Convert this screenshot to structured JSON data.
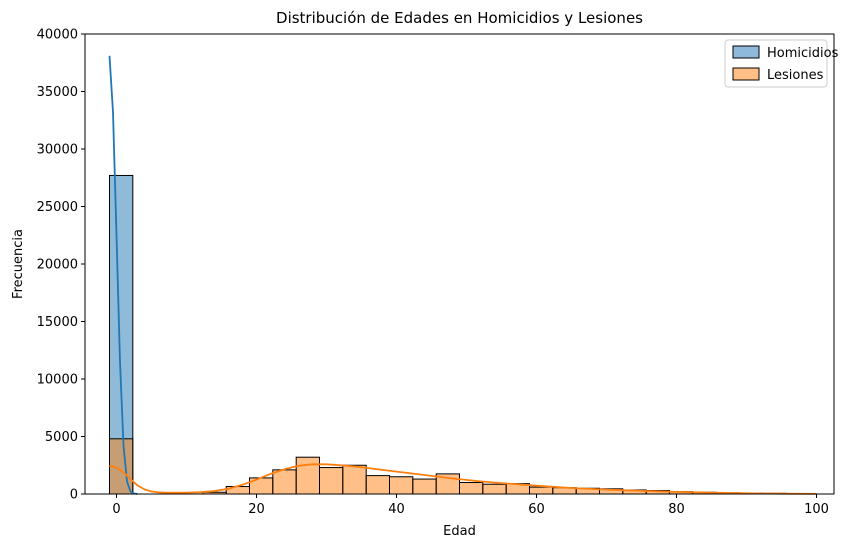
{
  "chart_data": {
    "type": "bar",
    "title": "Distribución de Edades en Homicidios y Lesiones",
    "xlabel": "Edad",
    "ylabel": "Frecuencia",
    "xlim": [
      -4.5,
      102.5
    ],
    "ylim": [
      0,
      40000
    ],
    "xticks": [
      0,
      20,
      40,
      60,
      80,
      100
    ],
    "yticks": [
      0,
      5000,
      10000,
      15000,
      20000,
      25000,
      30000,
      35000,
      40000
    ],
    "bin_edges": [
      -1,
      2.33,
      5.67,
      9,
      12.33,
      15.67,
      19,
      22.33,
      25.67,
      29,
      32.33,
      35.67,
      39,
      42.33,
      45.67,
      49,
      52.33,
      55.67,
      59,
      62.33,
      65.67,
      69,
      72.33,
      75.67,
      79,
      82.33,
      85.67,
      89,
      92.33,
      95.67,
      99
    ],
    "legend": "top-right",
    "series": [
      {
        "name": "Homicidios",
        "color": "#1f77b4",
        "bar_color": "#8fb9da",
        "values": [
          27700,
          0,
          0,
          0,
          0,
          0,
          0,
          0,
          0,
          0,
          0,
          0,
          0,
          0,
          0,
          0,
          0,
          0,
          0,
          0,
          0,
          0,
          0,
          0,
          0,
          0,
          0,
          0,
          0,
          0
        ],
        "kde": {
          "x": [
            -1,
            -0.5,
            0,
            0.5,
            1,
            1.5,
            2,
            2.5,
            3
          ],
          "y": [
            38100,
            33200,
            22500,
            11500,
            4200,
            1100,
            220,
            40,
            0
          ]
        }
      },
      {
        "name": "Lesiones",
        "color": "#ff7f0e",
        "bar_color": "#ffbf86",
        "values": [
          4800,
          0,
          0,
          0,
          150,
          650,
          1400,
          2100,
          3200,
          2300,
          2500,
          1600,
          1500,
          1300,
          1750,
          1000,
          850,
          900,
          600,
          550,
          500,
          450,
          350,
          300,
          200,
          150,
          100,
          80,
          60,
          40
        ],
        "kde": {
          "x": [
            -1,
            0,
            1,
            2,
            3,
            4,
            5,
            6,
            7,
            8,
            10,
            12,
            14,
            16,
            18,
            20,
            22,
            24,
            26,
            28,
            30,
            32,
            34,
            36,
            38,
            40,
            44,
            48,
            52,
            56,
            60,
            65,
            70,
            75,
            80,
            85,
            90,
            95,
            100
          ],
          "y": [
            2450,
            2300,
            1900,
            1300,
            750,
            400,
            220,
            150,
            120,
            110,
            120,
            160,
            260,
            450,
            800,
            1250,
            1750,
            2150,
            2450,
            2580,
            2580,
            2500,
            2400,
            2250,
            2100,
            1950,
            1650,
            1350,
            1100,
            900,
            720,
            520,
            380,
            270,
            180,
            110,
            60,
            30,
            10
          ]
        }
      }
    ]
  }
}
